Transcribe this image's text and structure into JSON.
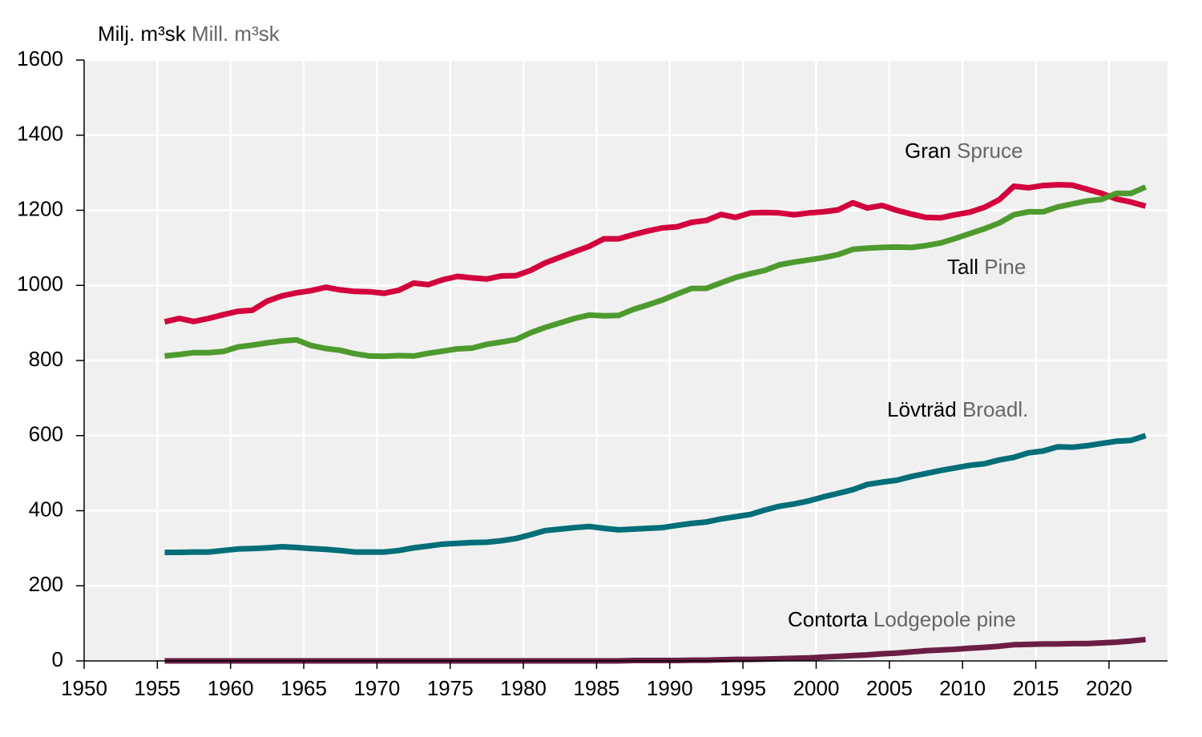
{
  "chart_data": {
    "type": "line",
    "unit_label": "Milj. m³sk",
    "unit_label_en": "Mill. m³sk",
    "x": [
      1955.5,
      1956.5,
      1957.5,
      1958.5,
      1959.5,
      1960.5,
      1961.5,
      1962.5,
      1963.5,
      1964.5,
      1965.5,
      1966.5,
      1967.5,
      1968.5,
      1969.5,
      1970.5,
      1971.5,
      1972.5,
      1973.5,
      1974.5,
      1975.5,
      1976.5,
      1977.5,
      1978.5,
      1979.5,
      1980.5,
      1981.5,
      1982.5,
      1983.5,
      1984.5,
      1985.5,
      1986.5,
      1987.5,
      1988.5,
      1989.5,
      1990.5,
      1991.5,
      1992.5,
      1993.5,
      1994.5,
      1995.5,
      1996.5,
      1997.5,
      1998.5,
      1999.5,
      2000.5,
      2001.5,
      2002.5,
      2003.5,
      2004.5,
      2005.5,
      2006.5,
      2007.5,
      2008.5,
      2009.5,
      2010.5,
      2011.5,
      2012.5,
      2013.5,
      2014.5,
      2015.5,
      2016.5,
      2017.5,
      2018.5,
      2019.5,
      2020.5,
      2021.5,
      2022.5
    ],
    "series": [
      {
        "name": "Gran",
        "name_en": "Spruce",
        "color": "#d2003c",
        "values": [
          903,
          912,
          904,
          912,
          922,
          931,
          934,
          958,
          972,
          980,
          986,
          995,
          988,
          984,
          983,
          979,
          987,
          1006,
          1002,
          1015,
          1024,
          1020,
          1017,
          1025,
          1026,
          1040,
          1060,
          1075,
          1090,
          1104,
          1124,
          1124,
          1135,
          1145,
          1153,
          1156,
          1168,
          1173,
          1189,
          1181,
          1193,
          1194,
          1193,
          1188,
          1193,
          1196,
          1201,
          1220,
          1206,
          1213,
          1200,
          1190,
          1181,
          1180,
          1188,
          1195,
          1208,
          1228,
          1264,
          1260,
          1266,
          1268,
          1267,
          1256,
          1245,
          1230,
          1222,
          1211
        ]
      },
      {
        "name": "Tall",
        "name_en": "Pine",
        "color": "#4e9a2e",
        "values": [
          812,
          816,
          821,
          821,
          824,
          836,
          841,
          847,
          852,
          855,
          840,
          832,
          827,
          818,
          812,
          811,
          813,
          812,
          819,
          825,
          831,
          833,
          843,
          849,
          856,
          874,
          888,
          900,
          912,
          921,
          919,
          920,
          936,
          948,
          961,
          977,
          992,
          992,
          1007,
          1021,
          1031,
          1040,
          1055,
          1062,
          1068,
          1074,
          1082,
          1096,
          1099,
          1101,
          1102,
          1101,
          1106,
          1113,
          1125,
          1138,
          1151,
          1166,
          1188,
          1196,
          1196,
          1209,
          1217,
          1225,
          1229,
          1245,
          1245,
          1262
        ]
      },
      {
        "name": "Lövträd",
        "name_en": "Broadl.",
        "color": "#006e78",
        "values": [
          289,
          289,
          290,
          290,
          294,
          298,
          299,
          301,
          304,
          302,
          299,
          297,
          294,
          290,
          290,
          290,
          294,
          301,
          306,
          311,
          313,
          315,
          316,
          320,
          326,
          336,
          347,
          351,
          355,
          358,
          353,
          349,
          351,
          353,
          355,
          361,
          366,
          370,
          378,
          384,
          390,
          402,
          412,
          418,
          426,
          437,
          446,
          456,
          470,
          476,
          481,
          491,
          499,
          507,
          514,
          521,
          525,
          535,
          542,
          554,
          559,
          570,
          569,
          573,
          579,
          585,
          587,
          600
        ]
      },
      {
        "name": "Contorta",
        "name_en": "Lodgepole pine",
        "color": "#6b1e45",
        "values": [
          0,
          0,
          0,
          0,
          0,
          0,
          0,
          0,
          0,
          0,
          0,
          0,
          0,
          0,
          0,
          0,
          0,
          0,
          0,
          0,
          0,
          0,
          0,
          0,
          0,
          0,
          0,
          0,
          0,
          0,
          0,
          0,
          1,
          1,
          1,
          1,
          2,
          2,
          3,
          4,
          4,
          5,
          6,
          7,
          8,
          10,
          12,
          14,
          16,
          19,
          21,
          24,
          27,
          29,
          31,
          34,
          36,
          39,
          43,
          44,
          45,
          45,
          46,
          46,
          48,
          50,
          53,
          57
        ]
      }
    ],
    "xlim": [
      1950,
      2024
    ],
    "xticks": [
      1950,
      1955,
      1960,
      1965,
      1970,
      1975,
      1980,
      1985,
      1990,
      1995,
      2000,
      2005,
      2010,
      2015,
      2020
    ],
    "ylim": [
      0,
      1600
    ],
    "yticks": [
      0,
      200,
      400,
      600,
      800,
      1000,
      1200,
      1400,
      1600
    ],
    "grid": true
  }
}
